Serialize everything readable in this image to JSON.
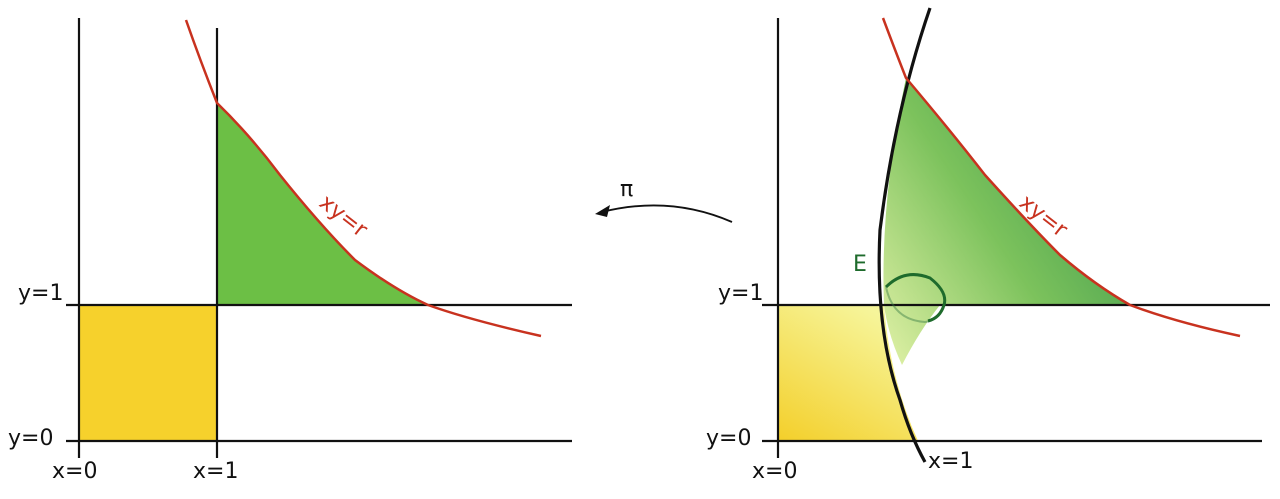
{
  "left_panel": {
    "labels": {
      "y1": "y=1",
      "y0": "y=0",
      "x0": "x=0",
      "x1": "x=1",
      "curve": "xy=r"
    }
  },
  "right_panel": {
    "labels": {
      "y1": "y=1",
      "y0": "y=0",
      "x0": "x=0",
      "x1": "x=1",
      "curve": "xy=r",
      "region": "E"
    }
  },
  "arrow": {
    "label": "π"
  },
  "colors": {
    "yellow": "#f6d12c",
    "green": "#6cbf45",
    "curve_red": "#c8321f",
    "line": "#111111",
    "ellipse_green": "#1e6b2c"
  }
}
